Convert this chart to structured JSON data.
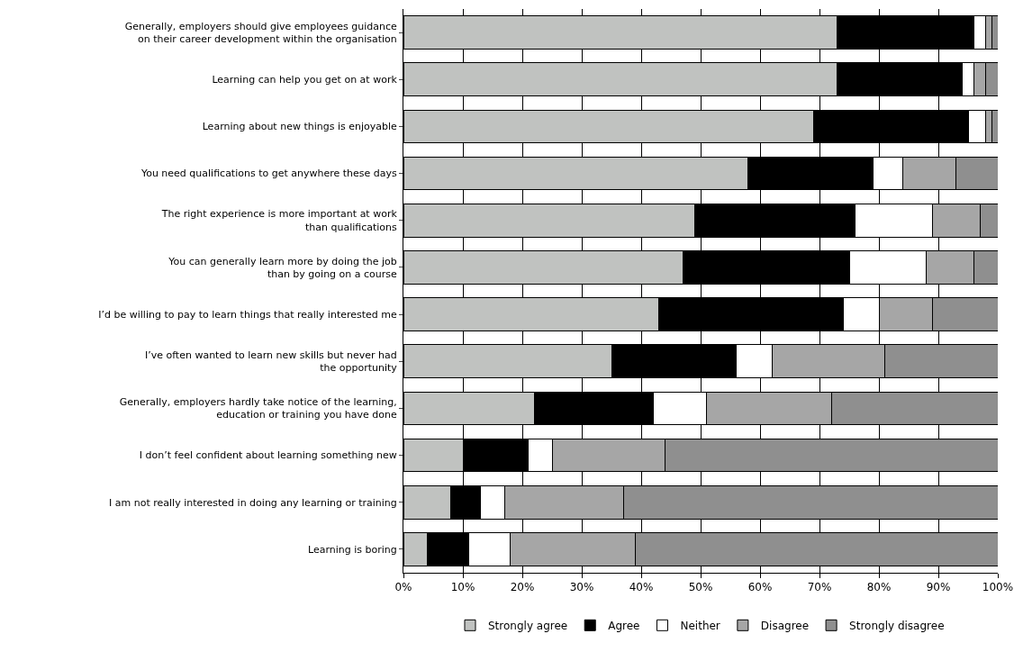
{
  "chart_data": {
    "type": "bar",
    "orientation": "horizontal",
    "stacked": true,
    "categories": [
      "Generally, employers should give employees guidance\non their career development within the organisation",
      "Learning can help you get on at work",
      "Learning about new things is enjoyable",
      "You need qualifications to get anywhere these days",
      "The right experience is more important at work\nthan qualifications",
      "You can generally learn more by doing the job\nthan by going on a course",
      "I’d be willing to pay to learn things that really interested me",
      "I’ve often wanted to learn new skills but never had\nthe opportunity",
      "Generally, employers hardly take notice of the learning,\neducation or training you have done",
      "I don’t feel confident about learning something new",
      "I am not really interested in doing any learning or training",
      "Learning is boring"
    ],
    "series": [
      {
        "name": "Strongly agree",
        "color": "#c0c2c0",
        "values": [
          73,
          73,
          69,
          58,
          49,
          47,
          43,
          35,
          22,
          10,
          8,
          4
        ]
      },
      {
        "name": "Agree",
        "color": "#000000",
        "values": [
          23,
          21,
          26,
          21,
          27,
          28,
          31,
          21,
          20,
          11,
          5,
          7
        ]
      },
      {
        "name": "Neither",
        "color": "#ffffff",
        "values": [
          2,
          2,
          3,
          5,
          13,
          13,
          6,
          6,
          9,
          4,
          4,
          7
        ]
      },
      {
        "name": "Disagree",
        "color": "#a6a6a6",
        "values": [
          1,
          2,
          1,
          9,
          8,
          8,
          9,
          19,
          21,
          19,
          20,
          21
        ]
      },
      {
        "name": "Strongly disagree",
        "color": "#8f8f8f",
        "values": [
          1,
          2,
          1,
          7,
          3,
          4,
          11,
          19,
          28,
          56,
          63,
          61
        ]
      }
    ],
    "xlim": [
      0,
      100
    ],
    "xticks": [
      {
        "value": 0,
        "label": "0%"
      },
      {
        "value": 10,
        "label": "10%"
      },
      {
        "value": 20,
        "label": "20%"
      },
      {
        "value": 30,
        "label": "30%"
      },
      {
        "value": 40,
        "label": "40%"
      },
      {
        "value": 50,
        "label": "50%"
      },
      {
        "value": 60,
        "label": "60%"
      },
      {
        "value": 70,
        "label": "70%"
      },
      {
        "value": 80,
        "label": "80%"
      },
      {
        "value": 90,
        "label": "90%"
      },
      {
        "value": 100,
        "label": "100%"
      }
    ],
    "grid": "x",
    "legend": "bottom"
  }
}
